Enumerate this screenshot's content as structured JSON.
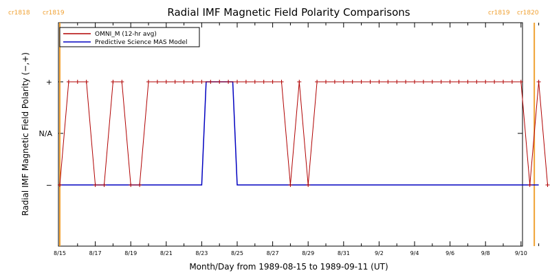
{
  "chart_data": {
    "type": "line",
    "title": "Radial IMF Magnetic Field Polarity Comparisons",
    "xlabel": "Month/Day from 1989-08-15 to 1989-09-11 (UT)",
    "ylabel": "Radial IMF Magnetic Field Polarity (−,+)",
    "x_start": "1989-08-15",
    "x_ticks": [
      "8/15",
      "8/17",
      "8/19",
      "8/21",
      "8/23",
      "8/25",
      "8/27",
      "8/29",
      "8/31",
      "9/2",
      "9/4",
      "9/6",
      "9/8",
      "9/10"
    ],
    "y_ticks": [
      "+",
      "N/A",
      "−"
    ],
    "ylim": [
      "−",
      "+"
    ],
    "legend_placement": "top-left",
    "cr_markers": [
      {
        "date": "1989-08-15",
        "label_left": "cr1818",
        "label_right": "cr1819",
        "color": "#f0a030"
      },
      {
        "date": "1989-09-10T18:00",
        "label_left": "cr1819",
        "label_right": "cr1820",
        "color": "#f0a030"
      }
    ],
    "series": [
      {
        "name": "OMNI_M (12-hr avg)",
        "color": "#b00000",
        "marker": "+",
        "x": [
          "1989-08-15T00:00",
          "1989-08-15T12:00",
          "1989-08-16T00:00",
          "1989-08-16T12:00",
          "1989-08-17T00:00",
          "1989-08-17T12:00",
          "1989-08-18T00:00",
          "1989-08-18T12:00",
          "1989-08-19T00:00",
          "1989-08-19T12:00",
          "1989-08-20T00:00",
          "1989-08-20T12:00",
          "1989-08-21T00:00",
          "1989-08-21T12:00",
          "1989-08-22T00:00",
          "1989-08-22T12:00",
          "1989-08-23T00:00",
          "1989-08-23T12:00",
          "1989-08-24T00:00",
          "1989-08-24T12:00",
          "1989-08-25T00:00",
          "1989-08-25T12:00",
          "1989-08-26T00:00",
          "1989-08-26T12:00",
          "1989-08-27T00:00",
          "1989-08-27T12:00",
          "1989-08-28T00:00",
          "1989-08-28T12:00",
          "1989-08-29T00:00",
          "1989-08-29T12:00",
          "1989-08-30T00:00",
          "1989-08-30T12:00",
          "1989-08-31T00:00",
          "1989-08-31T12:00",
          "1989-09-01T00:00",
          "1989-09-01T12:00",
          "1989-09-02T00:00",
          "1989-09-02T12:00",
          "1989-09-03T00:00",
          "1989-09-03T12:00",
          "1989-09-04T00:00",
          "1989-09-04T12:00",
          "1989-09-05T00:00",
          "1989-09-05T12:00",
          "1989-09-06T00:00",
          "1989-09-06T12:00",
          "1989-09-07T00:00",
          "1989-09-07T12:00",
          "1989-09-08T00:00",
          "1989-09-08T12:00",
          "1989-09-09T00:00",
          "1989-09-09T12:00",
          "1989-09-10T00:00",
          "1989-09-10T12:00",
          "1989-09-11T00:00",
          "1989-09-11T12:00"
        ],
        "y": [
          "−",
          "+",
          "+",
          "+",
          "−",
          "−",
          "+",
          "+",
          "−",
          "−",
          "+",
          "+",
          "+",
          "+",
          "+",
          "+",
          "+",
          "+",
          "+",
          "+",
          "+",
          "+",
          "+",
          "+",
          "+",
          "+",
          "−",
          "+",
          "−",
          "+",
          "+",
          "+",
          "+",
          "+",
          "+",
          "+",
          "+",
          "+",
          "+",
          "+",
          "+",
          "+",
          "+",
          "+",
          "+",
          "+",
          "+",
          "+",
          "+",
          "+",
          "+",
          "+",
          "+",
          "−",
          "+",
          "−"
        ]
      },
      {
        "name": "Predictive Science MAS Model",
        "color": "#0000c0",
        "x": [
          "1989-08-15T00:00",
          "1989-08-23T00:00",
          "1989-08-23T06:00",
          "1989-08-24T18:00",
          "1989-08-25T00:00",
          "1989-09-11T00:00"
        ],
        "y": [
          "−",
          "−",
          "+",
          "+",
          "−",
          "−"
        ]
      }
    ]
  }
}
